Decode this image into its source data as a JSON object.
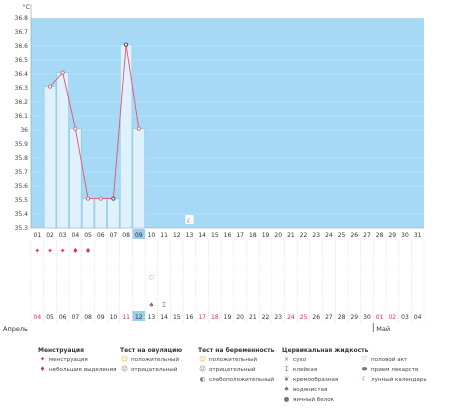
{
  "chart_data": {
    "type": "bar",
    "unit_label": "°C",
    "ylim": [
      35.3,
      36.8
    ],
    "y_ticks": [
      "36.8",
      "36.7",
      "36.6",
      "36.5",
      "36.4",
      "36.3",
      "36.2",
      "36.1",
      "36",
      "35.9",
      "35.8",
      "35.7",
      "35.6",
      "35.5",
      "35.4",
      "35.3"
    ],
    "days": [
      "01",
      "02",
      "03",
      "04",
      "05",
      "06",
      "07",
      "08",
      "09",
      "10",
      "11",
      "12",
      "13",
      "14",
      "15",
      "16",
      "17",
      "18",
      "19",
      "20",
      "21",
      "22",
      "23",
      "24",
      "25",
      "26",
      "27",
      "28",
      "29",
      "30",
      "31"
    ],
    "highlight_day_index": 8,
    "values": [
      null,
      36.31,
      36.41,
      36.01,
      35.51,
      35.51,
      35.51,
      36.61,
      36.01,
      null,
      null,
      null,
      null,
      null,
      null,
      null,
      null,
      null,
      null,
      null,
      null,
      null,
      null,
      null,
      null,
      null,
      null,
      null,
      null,
      null,
      null
    ],
    "open_marker_indices": [
      6,
      7
    ],
    "moon_marker": {
      "index": 12,
      "value": 35.35
    },
    "menstruation_row": [
      "heavy",
      "heavy",
      "heavy",
      "light",
      "light",
      "",
      "",
      "",
      "",
      "",
      "",
      "",
      "",
      "",
      "",
      "",
      "",
      "",
      "",
      "",
      "",
      "",
      "",
      "",
      "",
      "",
      "",
      "",
      "",
      "",
      ""
    ],
    "intercourse_row": [
      "",
      "",
      "",
      "",
      "",
      "",
      "",
      "",
      "",
      "heart",
      "",
      "",
      "",
      "",
      "",
      "",
      "",
      "",
      "",
      "",
      "",
      "",
      "",
      "",
      "",
      "",
      "",
      "",
      "",
      "",
      ""
    ],
    "mucus_row": [
      "",
      "",
      "",
      "",
      "",
      "",
      "",
      "",
      "",
      "drop",
      "sticky",
      "",
      "",
      "",
      "",
      "",
      "",
      "",
      "",
      "",
      "",
      "",
      "",
      "",
      "",
      "",
      "",
      "",
      "",
      "",
      ""
    ],
    "dates_bottom": [
      {
        "label": "04",
        "color": "red"
      },
      {
        "label": "05",
        "color": "dark"
      },
      {
        "label": "06",
        "color": "dark"
      },
      {
        "label": "07",
        "color": "dark"
      },
      {
        "label": "08",
        "color": "dark"
      },
      {
        "label": "09",
        "color": "dark"
      },
      {
        "label": "10",
        "color": "dark"
      },
      {
        "label": "11",
        "color": "red"
      },
      {
        "label": "12",
        "color": "dark"
      },
      {
        "label": "13",
        "color": "dark"
      },
      {
        "label": "14",
        "color": "dark"
      },
      {
        "label": "15",
        "color": "dark"
      },
      {
        "label": "16",
        "color": "dark"
      },
      {
        "label": "17",
        "color": "red"
      },
      {
        "label": "18",
        "color": "red"
      },
      {
        "label": "19",
        "color": "dark"
      },
      {
        "label": "20",
        "color": "dark"
      },
      {
        "label": "21",
        "color": "dark"
      },
      {
        "label": "22",
        "color": "dark"
      },
      {
        "label": "23",
        "color": "dark"
      },
      {
        "label": "24",
        "color": "red"
      },
      {
        "label": "25",
        "color": "red"
      },
      {
        "label": "26",
        "color": "dark"
      },
      {
        "label": "27",
        "color": "dark"
      },
      {
        "label": "28",
        "color": "dark"
      },
      {
        "label": "29",
        "color": "dark"
      },
      {
        "label": "30",
        "color": "dark"
      },
      {
        "label": "01",
        "color": "red"
      },
      {
        "label": "02",
        "color": "red"
      },
      {
        "label": "03",
        "color": "dark"
      },
      {
        "label": "04",
        "color": "dark"
      }
    ],
    "month_start": "Апрель",
    "month_next": "Май",
    "month_next_index": 27
  },
  "legend": {
    "menstruation": {
      "title": "Менструация",
      "items": [
        "менструация",
        "небольшие выделения"
      ]
    },
    "ovulation_test": {
      "title": "Тест на овуляцию",
      "items": [
        "положительный",
        "отрицательный"
      ]
    },
    "pregnancy_test": {
      "title": "Тест на беременность",
      "items": [
        "положительный",
        "отрицательный",
        "слабоположительный"
      ]
    },
    "cervical_fluid": {
      "title": "Цервикальная жидкость",
      "items": [
        "сухо",
        "клейкая",
        "кремообразная",
        "водянистая",
        "яичный белок"
      ]
    },
    "other": {
      "items": [
        "половой акт",
        "прием лекарств",
        "лунный календарь"
      ]
    }
  },
  "colors": {
    "plot_bg": "#a6d9f5",
    "bar_fill": "#dff1fc",
    "bar_stroke": "#8fc7e8",
    "line": "#e0566f",
    "highlight": "#9ccfe9",
    "red_text": "#e0334a"
  }
}
